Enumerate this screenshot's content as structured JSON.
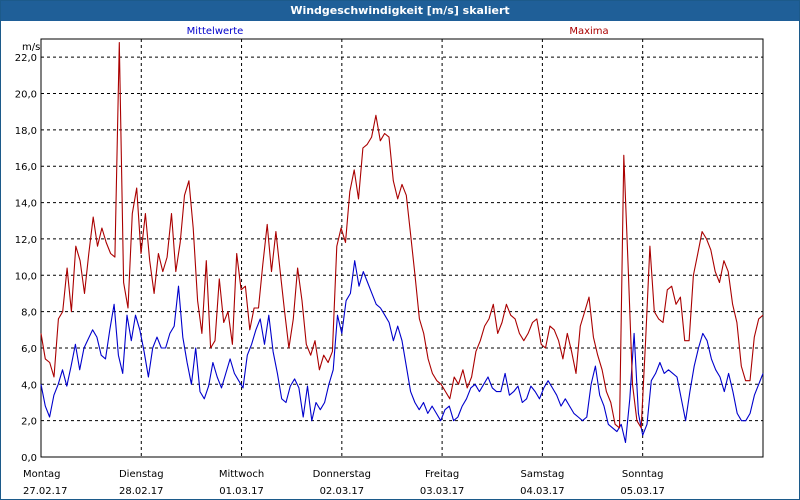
{
  "window": {
    "title": "Windgeschwindigkeit [m/s] skaliert"
  },
  "chart_data": {
    "type": "line",
    "ylabel": "m/s",
    "ylim": [
      0,
      23
    ],
    "y_ticks": [
      "0,0",
      "2,0",
      "4,0",
      "6,0",
      "8,0",
      "10,0",
      "12,0",
      "14,0",
      "16,0",
      "18,0",
      "20,0",
      "22,0"
    ],
    "grid": true,
    "legend": "top",
    "x_range_days": [
      0,
      7.2
    ],
    "x_ticks": [
      {
        "day": "Montag",
        "date": "27.02.17"
      },
      {
        "day": "Dienstag",
        "date": "28.02.17"
      },
      {
        "day": "Mittwoch",
        "date": "01.03.17"
      },
      {
        "day": "Donnerstag",
        "date": "02.03.17"
      },
      {
        "day": "Freitag",
        "date": "03.03.17"
      },
      {
        "day": "Samstag",
        "date": "04.03.17"
      },
      {
        "day": "Sonntag",
        "date": "05.03.17"
      }
    ],
    "series": [
      {
        "name": "Mittelwerte",
        "color": "#0000cc",
        "values": [
          4.0,
          2.8,
          2.2,
          3.4,
          4.0,
          4.8,
          3.9,
          5.0,
          6.2,
          4.8,
          6.0,
          6.5,
          7.0,
          6.6,
          5.6,
          5.4,
          7.0,
          8.4,
          5.6,
          4.6,
          7.8,
          6.4,
          7.8,
          7.0,
          5.8,
          4.4,
          6.0,
          6.6,
          6.0,
          6.0,
          6.8,
          7.2,
          9.4,
          6.6,
          5.2,
          4.0,
          6.0,
          3.6,
          3.2,
          3.9,
          5.2,
          4.4,
          3.8,
          4.6,
          5.4,
          4.6,
          4.2,
          3.8,
          5.6,
          6.2,
          7.0,
          7.6,
          6.2,
          7.8,
          5.8,
          4.6,
          3.2,
          3.0,
          3.9,
          4.3,
          3.8,
          2.2,
          3.9,
          2.0,
          3.0,
          2.6,
          3.0,
          4.0,
          4.8,
          7.8,
          6.8,
          8.6,
          9.0,
          10.8,
          9.4,
          10.2,
          9.6,
          9.0,
          8.4,
          8.2,
          7.8,
          7.4,
          6.4,
          7.2,
          6.4,
          5.0,
          3.6,
          3.0,
          2.6,
          3.0,
          2.4,
          2.8,
          2.4,
          2.0,
          2.6,
          2.8,
          2.0,
          2.2,
          2.8,
          3.2,
          3.8,
          4.0,
          3.6,
          4.0,
          4.4,
          3.8,
          3.6,
          3.6,
          4.6,
          3.4,
          3.6,
          3.9,
          3.0,
          3.2,
          3.9,
          3.6,
          3.2,
          3.8,
          4.2,
          3.8,
          3.4,
          2.8,
          3.2,
          2.8,
          2.4,
          2.2,
          2.0,
          2.2,
          4.0,
          5.0,
          3.4,
          2.8,
          1.8,
          1.6,
          1.4,
          1.8,
          0.8,
          3.2,
          6.8,
          2.4,
          1.2,
          1.8,
          4.2,
          4.6,
          5.2,
          4.6,
          4.8,
          4.6,
          4.4,
          3.2,
          2.0,
          3.6,
          5.0,
          6.0,
          6.8,
          6.4,
          5.4,
          4.8,
          4.4,
          3.6,
          4.6,
          3.6,
          2.4,
          2.0,
          2.0,
          2.4,
          3.4,
          4.0,
          4.6
        ]
      },
      {
        "name": "Maxima",
        "color": "#aa0000",
        "values": [
          6.8,
          5.4,
          5.2,
          4.4,
          7.6,
          8.0,
          10.4,
          8.0,
          11.6,
          10.8,
          9.0,
          11.2,
          13.2,
          11.6,
          12.6,
          11.8,
          11.2,
          11.0,
          22.8,
          9.6,
          8.2,
          13.4,
          14.8,
          11.2,
          13.4,
          10.8,
          9.0,
          11.2,
          10.2,
          11.0,
          13.4,
          10.2,
          11.8,
          14.4,
          15.2,
          12.6,
          8.6,
          6.8,
          10.8,
          6.0,
          6.4,
          9.8,
          7.4,
          8.0,
          6.2,
          11.2,
          9.2,
          9.4,
          7.0,
          8.2,
          8.2,
          10.6,
          12.8,
          10.2,
          12.4,
          10.2,
          8.0,
          6.0,
          7.6,
          10.4,
          8.6,
          6.2,
          5.6,
          6.4,
          4.8,
          5.6,
          5.2,
          5.8,
          11.6,
          12.6,
          11.8,
          14.6,
          15.8,
          14.2,
          17.0,
          17.2,
          17.6,
          18.8,
          17.4,
          17.8,
          17.6,
          15.2,
          14.2,
          15.0,
          14.4,
          12.2,
          10.0,
          7.6,
          6.8,
          5.4,
          4.6,
          4.2,
          4.0,
          3.6,
          3.2,
          4.4,
          4.0,
          4.8,
          3.8,
          4.4,
          5.8,
          6.4,
          7.2,
          7.6,
          8.4,
          6.8,
          7.4,
          8.4,
          7.8,
          7.6,
          6.8,
          6.4,
          6.8,
          7.4,
          7.6,
          6.2,
          6.0,
          7.2,
          7.0,
          6.4,
          5.4,
          6.8,
          5.8,
          4.6,
          7.2,
          8.0,
          8.8,
          6.6,
          5.6,
          4.8,
          3.6,
          3.0,
          1.8,
          1.6,
          16.6,
          10.4,
          4.0,
          2.0,
          1.6,
          6.4,
          11.6,
          8.0,
          7.6,
          7.4,
          9.2,
          9.4,
          8.4,
          8.8,
          6.4,
          6.4,
          10.0,
          11.2,
          12.4,
          12.0,
          11.4,
          10.2,
          9.6,
          10.8,
          10.2,
          8.4,
          7.4,
          5.0,
          4.2,
          4.2,
          6.6,
          7.6,
          7.8
        ]
      }
    ]
  }
}
